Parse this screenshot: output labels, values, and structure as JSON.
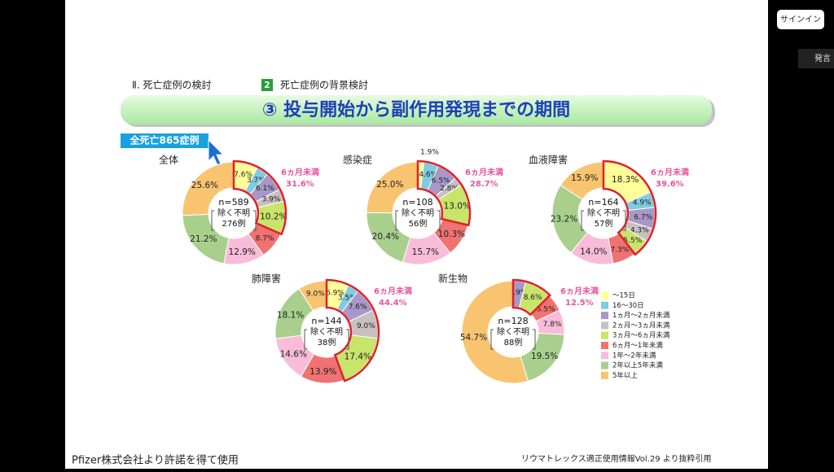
{
  "app": {
    "sign_in": "サインイン",
    "speak": "発言"
  },
  "slide": {
    "section": "Ⅱ. 死亡症例の検討",
    "sub_number": "2",
    "sub_title": "死亡症例の背景検討",
    "title": "③ 投与開始から副作用発現までの期間",
    "badge": "全死亡865症例",
    "footer_left": "Pfizer株式会社より許諾を得て使用",
    "footer_right": "リウマトレックス適正使用情報Vol.29 より抜粋引用"
  },
  "legend": {
    "labels": [
      "～15日",
      "16～30日",
      "1ヵ月～2ヵ月未満",
      "2ヵ月～3ヵ月未満",
      "3ヵ月～6ヵ月未満",
      "6ヵ月～1年未満",
      "1年～2年未満",
      "2年以上5年未満",
      "5年以上"
    ],
    "colors": [
      "#ffff99",
      "#80cce0",
      "#a898c8",
      "#c8c0c0",
      "#c8e46a",
      "#f07272",
      "#f8bcd8",
      "#a8d08c",
      "#f8c470"
    ]
  },
  "chart_data": [
    {
      "type": "pie",
      "title": "全体",
      "center": [
        "n=589",
        "除く不明",
        "276例"
      ],
      "values": [
        7.6,
        3.7,
        6.1,
        3.9,
        10.2,
        8.7,
        12.9,
        21.2,
        25.6
      ],
      "value_labels": [
        "7.6%",
        "3.7%",
        "6.1%",
        "3.9%",
        "10.2%",
        "8.7%",
        "12.9%",
        "21.2%",
        "25.6%"
      ],
      "highlight": {
        "label": "6ヵ月未満",
        "value": 31.6,
        "value_label": "31.6%"
      }
    },
    {
      "type": "pie",
      "title": "感染症",
      "center": [
        "n=108",
        "除く不明",
        "56例"
      ],
      "values": [
        1.9,
        4.6,
        6.5,
        2.8,
        13.0,
        10.3,
        15.7,
        20.4,
        25.0
      ],
      "value_labels": [
        "1.9%",
        "4.6%",
        "6.5%",
        "2.8%",
        "13.0%",
        "10.3%",
        "15.7%",
        "20.4%",
        "25.0%"
      ],
      "highlight": {
        "label": "6ヵ月未満",
        "value": 28.7,
        "value_label": "28.7%"
      }
    },
    {
      "type": "pie",
      "title": "血液障害",
      "center": [
        "n=164",
        "除く不明",
        "57例"
      ],
      "values": [
        18.3,
        4.9,
        6.7,
        4.3,
        5.5,
        7.3,
        14.0,
        23.2,
        15.9
      ],
      "value_labels": [
        "18.3%",
        "4.9%",
        "6.7%",
        "4.3%",
        "5.5%",
        "7.3%",
        "14.0%",
        "23.2%",
        "15.9%"
      ],
      "highlight": {
        "label": "6ヵ月未満",
        "value": 39.6,
        "value_label": "39.6%"
      }
    },
    {
      "type": "pie",
      "title": "肺障害",
      "center": [
        "n=144",
        "除く不明",
        "38例"
      ],
      "values": [
        6.9,
        3.5,
        7.6,
        9.0,
        17.4,
        13.9,
        14.6,
        18.1,
        9.0
      ],
      "value_labels": [
        "6.9%",
        "3.5%",
        "7.6%",
        "9.0%",
        "17.4%",
        "13.9%",
        "14.6%",
        "18.1%",
        "9.0%"
      ],
      "highlight": {
        "label": "6ヵ月未満",
        "value": 44.4,
        "value_label": "44.4%"
      }
    },
    {
      "type": "pie",
      "title": "新生物",
      "center": [
        "n=128",
        "除く不明",
        "88例"
      ],
      "values": [
        0,
        0,
        3.9,
        0,
        8.6,
        5.5,
        7.8,
        19.5,
        54.7
      ],
      "value_labels": [
        null,
        null,
        "3.9%",
        null,
        "8.6%",
        "5.5%",
        "7.8%",
        "19.5%",
        "54.7%"
      ],
      "highlight": {
        "label": "6ヵ月未満",
        "value": 12.5,
        "value_label": "12.5%"
      }
    }
  ]
}
